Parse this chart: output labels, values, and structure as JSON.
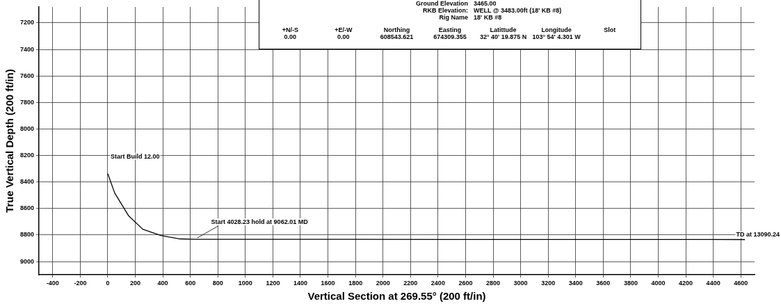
{
  "chart_data": [
    {
      "type": "line",
      "xlabel": "Vertical Section at 269.55° (200 ft/in)",
      "ylabel": "True Vertical Depth (200 ft/in)",
      "series": [
        {
          "color": "#000000",
          "x": [
            0,
            50,
            150,
            254,
            386,
            523,
            650,
            1500,
            2500,
            3500,
            4630
          ],
          "values": [
            8337,
            8482,
            8653,
            8756,
            8803,
            8829,
            8832,
            8832,
            8833,
            8833,
            8834
          ]
        }
      ],
      "xlim": [
        -500,
        4700
      ],
      "ylim": [
        9100,
        7080
      ],
      "xticks": [
        -400,
        -200,
        0,
        200,
        400,
        600,
        800,
        1000,
        1200,
        1400,
        1600,
        1800,
        2000,
        2200,
        2400,
        2600,
        2800,
        3000,
        3200,
        3400,
        3600,
        3800,
        4000,
        4200,
        4400,
        4600
      ],
      "yticks": [
        7200,
        7400,
        7600,
        7800,
        8000,
        8200,
        8400,
        8600,
        8800,
        9000
      ],
      "grid": true,
      "marker": "none",
      "line_style": "solid",
      "annotations": [
        {
          "text": "Start Build 12.00",
          "x": 0,
          "y": 8337
        },
        {
          "text": "Start 4028.23 hold at 9062.01 MD",
          "x": 650,
          "y": 8832
        },
        {
          "text": "TD at 13090.24",
          "x": 4630,
          "y": 8834
        }
      ]
    },
    {
      "type": "other",
      "annotations": [
        "Ground Elevation",
        "3465.00",
        "RKB Elevation:",
        "WELL @ 3483.00ft (18' KB #8)",
        "Rig Name",
        "18' KB #8",
        "+N/-S",
        "+E/-W",
        "Northing",
        "Easting",
        "Latittude",
        "Longitude",
        "Slot",
        "0.00",
        "0.00",
        "608543.621",
        "674309.355",
        "32° 40' 19.875 N",
        "103° 54' 4.301 W"
      ]
    }
  ]
}
